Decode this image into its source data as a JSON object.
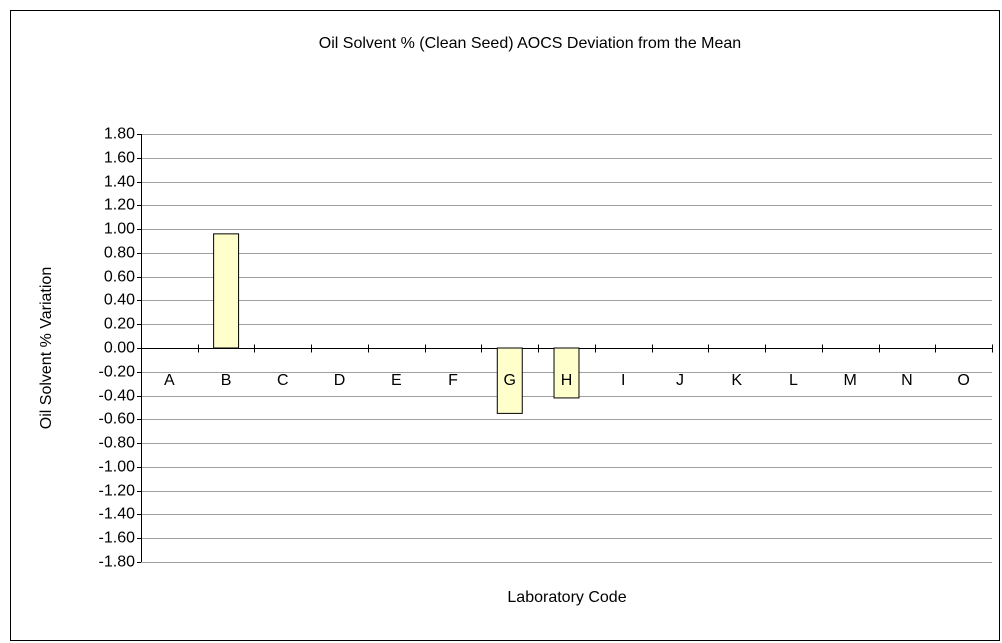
{
  "chart_data": {
    "type": "bar",
    "title": "Oil Solvent % (Clean Seed) AOCS Deviation from the Mean",
    "x_label": "Laboratory Code",
    "y_label": "Oil Solvent % Variation",
    "categories": [
      "A",
      "B",
      "C",
      "D",
      "E",
      "F",
      "G",
      "H",
      "I",
      "J",
      "K",
      "L",
      "M",
      "N",
      "O"
    ],
    "values": [
      0,
      0.96,
      0,
      0,
      0,
      0,
      -0.55,
      -0.42,
      0,
      0,
      0,
      0,
      0,
      0,
      0
    ],
    "color": "#ffffcc",
    "ylim": [
      -1.8,
      1.8
    ],
    "yticks": [
      {
        "value": -1.8,
        "label": "-1.80"
      },
      {
        "value": -1.6,
        "label": "-1.60"
      },
      {
        "value": -1.4,
        "label": "-1.40"
      },
      {
        "value": -1.2,
        "label": "-1.20"
      },
      {
        "value": -1.0,
        "label": "-1.00"
      },
      {
        "value": -0.8,
        "label": "-0.80"
      },
      {
        "value": -0.6,
        "label": "-0.60"
      },
      {
        "value": -0.4,
        "label": "-0.40"
      },
      {
        "value": -0.2,
        "label": "-0.20"
      },
      {
        "value": 0,
        "label": "0.00"
      },
      {
        "value": 0.2,
        "label": "0.20"
      },
      {
        "value": 0.4,
        "label": "0.40"
      },
      {
        "value": 0.6,
        "label": "0.60"
      },
      {
        "value": 0.8,
        "label": "0.80"
      },
      {
        "value": 1.0,
        "label": "1.00"
      },
      {
        "value": 1.2,
        "label": "1.20"
      },
      {
        "value": 1.4,
        "label": "1.40"
      },
      {
        "value": 1.6,
        "label": "1.60"
      },
      {
        "value": 1.8,
        "label": "1.80"
      }
    ],
    "grid": true
  }
}
